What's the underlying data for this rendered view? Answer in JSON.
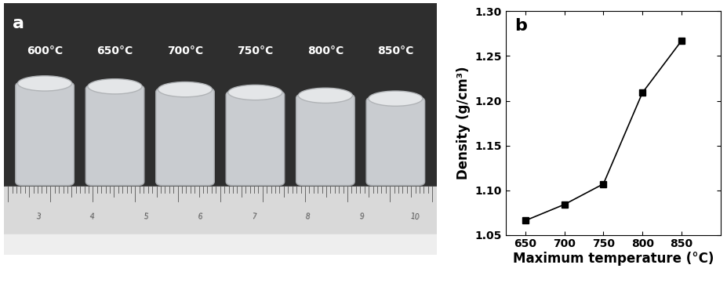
{
  "photo": {
    "panel": "a",
    "sample_labels": [
      "600°C",
      "650°C",
      "700°C",
      "750°C",
      "800°C",
      "850°C"
    ],
    "ruler_labels": [
      "3",
      "4",
      "5",
      "6",
      "7",
      "8",
      "9",
      "10"
    ]
  },
  "chart_data": {
    "panel": "b",
    "type": "line",
    "x": [
      650,
      700,
      750,
      800,
      850
    ],
    "values": [
      1.066,
      1.084,
      1.107,
      1.209,
      1.267
    ],
    "color": "#000000",
    "marker": "square",
    "line_style": "solid",
    "x_label": "Maximum temperature (°C)",
    "y_label": "Density (g/cm³)",
    "xlim": [
      625,
      900
    ],
    "xticks": [
      650,
      700,
      750,
      800,
      850
    ],
    "ylim": [
      1.05,
      1.3
    ],
    "yticks": [
      1.05,
      {
        "value": 1.1,
        "label": "1.10"
      },
      1.15,
      {
        "value": 1.2,
        "label": "1.20"
      },
      1.25,
      {
        "value": 1.3,
        "label": "1.30"
      }
    ],
    "grid": false
  }
}
